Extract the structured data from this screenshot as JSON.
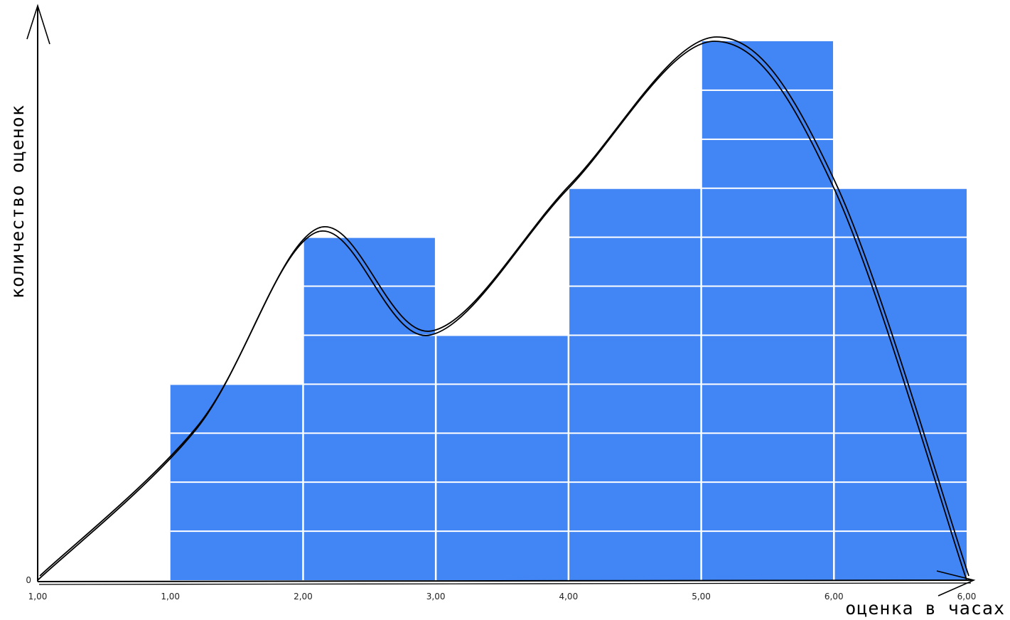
{
  "chart_data": {
    "type": "bar",
    "title": "",
    "xlabel": "оценка в часах",
    "ylabel": "количество оценок",
    "x_ticks": [
      "1,00",
      "1,00",
      "2,00",
      "3,00",
      "4,00",
      "5,00",
      "6,00",
      "6,00"
    ],
    "y_ticks": [
      "0"
    ],
    "bins": [
      {
        "start_tick": 1,
        "end_tick": 2,
        "value": 4
      },
      {
        "start_tick": 2,
        "end_tick": 3,
        "value": 7
      },
      {
        "start_tick": 3,
        "end_tick": 4,
        "value": 5
      },
      {
        "start_tick": 4,
        "end_tick": 5,
        "value": 8
      },
      {
        "start_tick": 5,
        "end_tick": 6,
        "value": 11
      },
      {
        "start_tick": 6,
        "end_tick": 7,
        "value": 8
      }
    ],
    "ylim": [
      0,
      11
    ],
    "grid": true,
    "bar_color": "#4285f4",
    "grid_color": "#ffffff",
    "curve": {
      "type": "hand-drawn density curve",
      "points": [
        [
          0,
          0
        ],
        [
          1.2,
          3.1
        ],
        [
          2.1,
          7.1
        ],
        [
          2.95,
          5.0
        ],
        [
          4.0,
          8.0
        ],
        [
          5.1,
          11.0
        ],
        [
          6.0,
          8.0
        ],
        [
          7.0,
          0
        ]
      ]
    }
  }
}
